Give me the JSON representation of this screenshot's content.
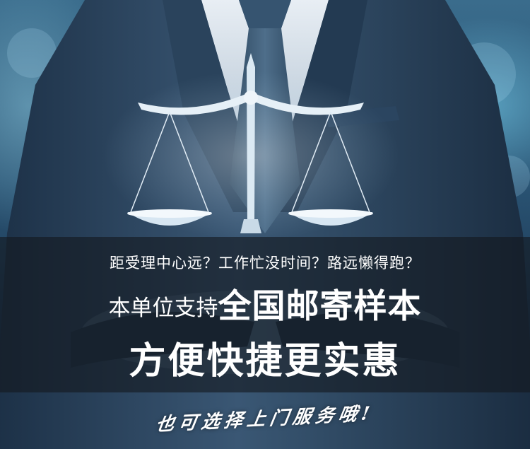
{
  "banner": {
    "subtitle": "距受理中心远？工作忙没时间？路远懒得跑？",
    "headline_prefix": "本单位支持",
    "headline_emphasis": "全国邮寄样本",
    "headline_line2": "方便快捷更实惠",
    "tagline": "也可选择上门服务哦!"
  },
  "colors": {
    "text": "#ffffff",
    "band": "#14181e",
    "suit": "#2f4a63",
    "tie": "#3c5a74",
    "scale_glow": "#dbe9f3"
  },
  "icons": [
    "scales-of-justice-icon"
  ]
}
